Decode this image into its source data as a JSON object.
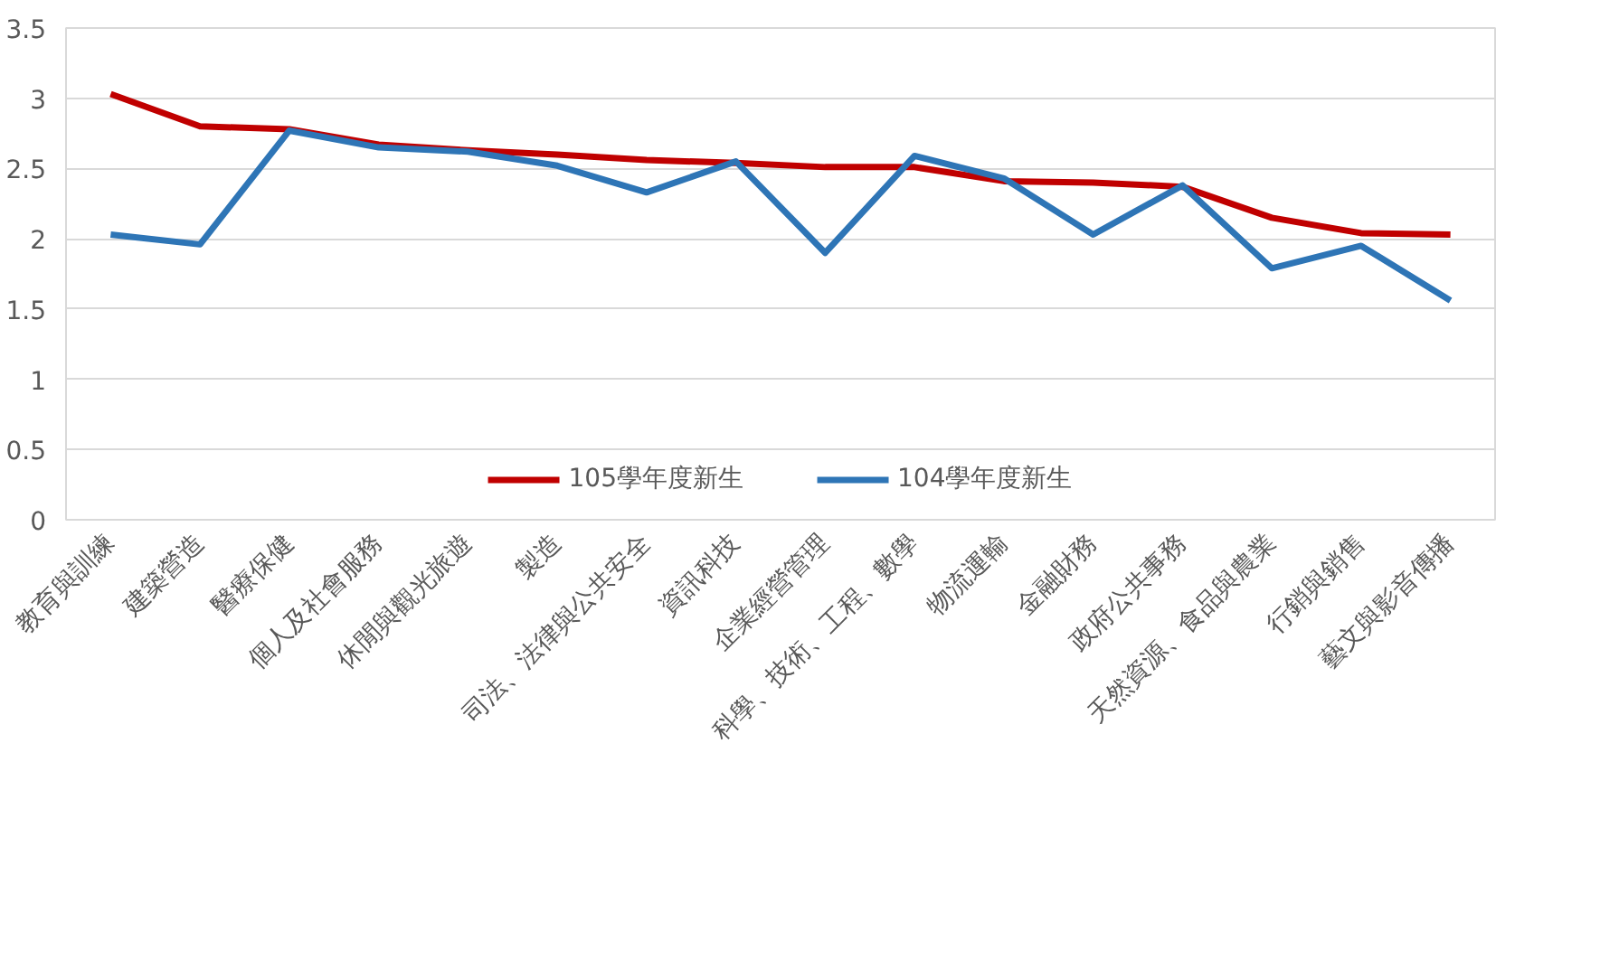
{
  "chart_data": {
    "type": "line",
    "categories": [
      "教育與訓練",
      "建築營造",
      "醫療保健",
      "個人及社會服務",
      "休閒與觀光旅遊",
      "製造",
      "司法、法律與公共安全",
      "資訊科技",
      "企業經營管理",
      "科學、技術、工程、數學",
      "物流運輸",
      "金融財務",
      "政府公共事務",
      "天然資源、食品與農業",
      "行銷與銷售",
      "藝文與影音傳播"
    ],
    "series": [
      {
        "name": "105學年度新生",
        "color": "#c00000",
        "values": [
          3.03,
          2.8,
          2.78,
          2.67,
          2.63,
          2.6,
          2.56,
          2.54,
          2.51,
          2.51,
          2.41,
          2.4,
          2.37,
          2.15,
          2.04,
          2.03
        ]
      },
      {
        "name": "104學年度新生",
        "color": "#2e75b6",
        "values": [
          2.03,
          1.96,
          2.77,
          2.65,
          2.62,
          2.52,
          2.33,
          2.55,
          1.9,
          2.59,
          2.43,
          2.03,
          2.38,
          1.79,
          1.95,
          1.56
        ]
      }
    ],
    "ylim": [
      0,
      3.5
    ],
    "yticks": [
      0,
      0.5,
      1,
      1.5,
      2,
      2.5,
      3,
      3.5
    ],
    "grid": "y",
    "legend": "bottom",
    "marker": "none",
    "line_style": "solid"
  }
}
